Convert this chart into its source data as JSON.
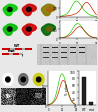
{
  "fig_bg": "#e8e8e8",
  "cell_panels": {
    "row1_colors": [
      "#00cc00",
      "#cc0000",
      "#667700"
    ],
    "row2_colors": [
      "#00bb00",
      "#cc0000",
      "#007700"
    ]
  },
  "line_plot1": {
    "x": [
      0,
      1,
      2,
      3,
      4,
      5,
      6,
      7,
      8,
      9,
      10,
      11,
      12,
      13,
      14,
      15,
      16,
      17,
      18,
      19,
      20,
      21,
      22,
      23,
      24,
      25
    ],
    "green": [
      5,
      8,
      12,
      18,
      25,
      35,
      55,
      80,
      110,
      140,
      165,
      175,
      168,
      155,
      135,
      110,
      85,
      65,
      48,
      35,
      25,
      18,
      12,
      8,
      5,
      3
    ],
    "red": [
      3,
      4,
      5,
      6,
      8,
      10,
      12,
      15,
      18,
      22,
      28,
      35,
      45,
      60,
      80,
      105,
      130,
      150,
      160,
      155,
      140,
      118,
      90,
      65,
      40,
      20
    ]
  },
  "line_plot2": {
    "x": [
      0,
      1,
      2,
      3,
      4,
      5,
      6,
      7,
      8,
      9,
      10,
      11,
      12,
      13,
      14,
      15,
      16,
      17,
      18,
      19,
      20,
      21,
      22,
      23,
      24,
      25
    ],
    "green": [
      3,
      5,
      8,
      12,
      18,
      28,
      42,
      60,
      85,
      112,
      138,
      155,
      162,
      158,
      145,
      125,
      100,
      75,
      55,
      38,
      26,
      17,
      11,
      7,
      4,
      3
    ],
    "red": [
      2,
      3,
      5,
      8,
      12,
      18,
      25,
      35,
      48,
      65,
      85,
      105,
      120,
      128,
      125,
      115,
      98,
      78,
      60,
      44,
      30,
      20,
      13,
      8,
      5,
      3
    ]
  },
  "bar_chart": {
    "categories": [
      "WT",
      "mut"
    ],
    "values": [
      82,
      8
    ],
    "colors": [
      "#222222",
      "#222222"
    ],
    "ylabel": "% coloc",
    "ylim": [
      0,
      100
    ]
  },
  "wb_bg": "#c8c8c8",
  "domain_bg": "#f0f0f0"
}
